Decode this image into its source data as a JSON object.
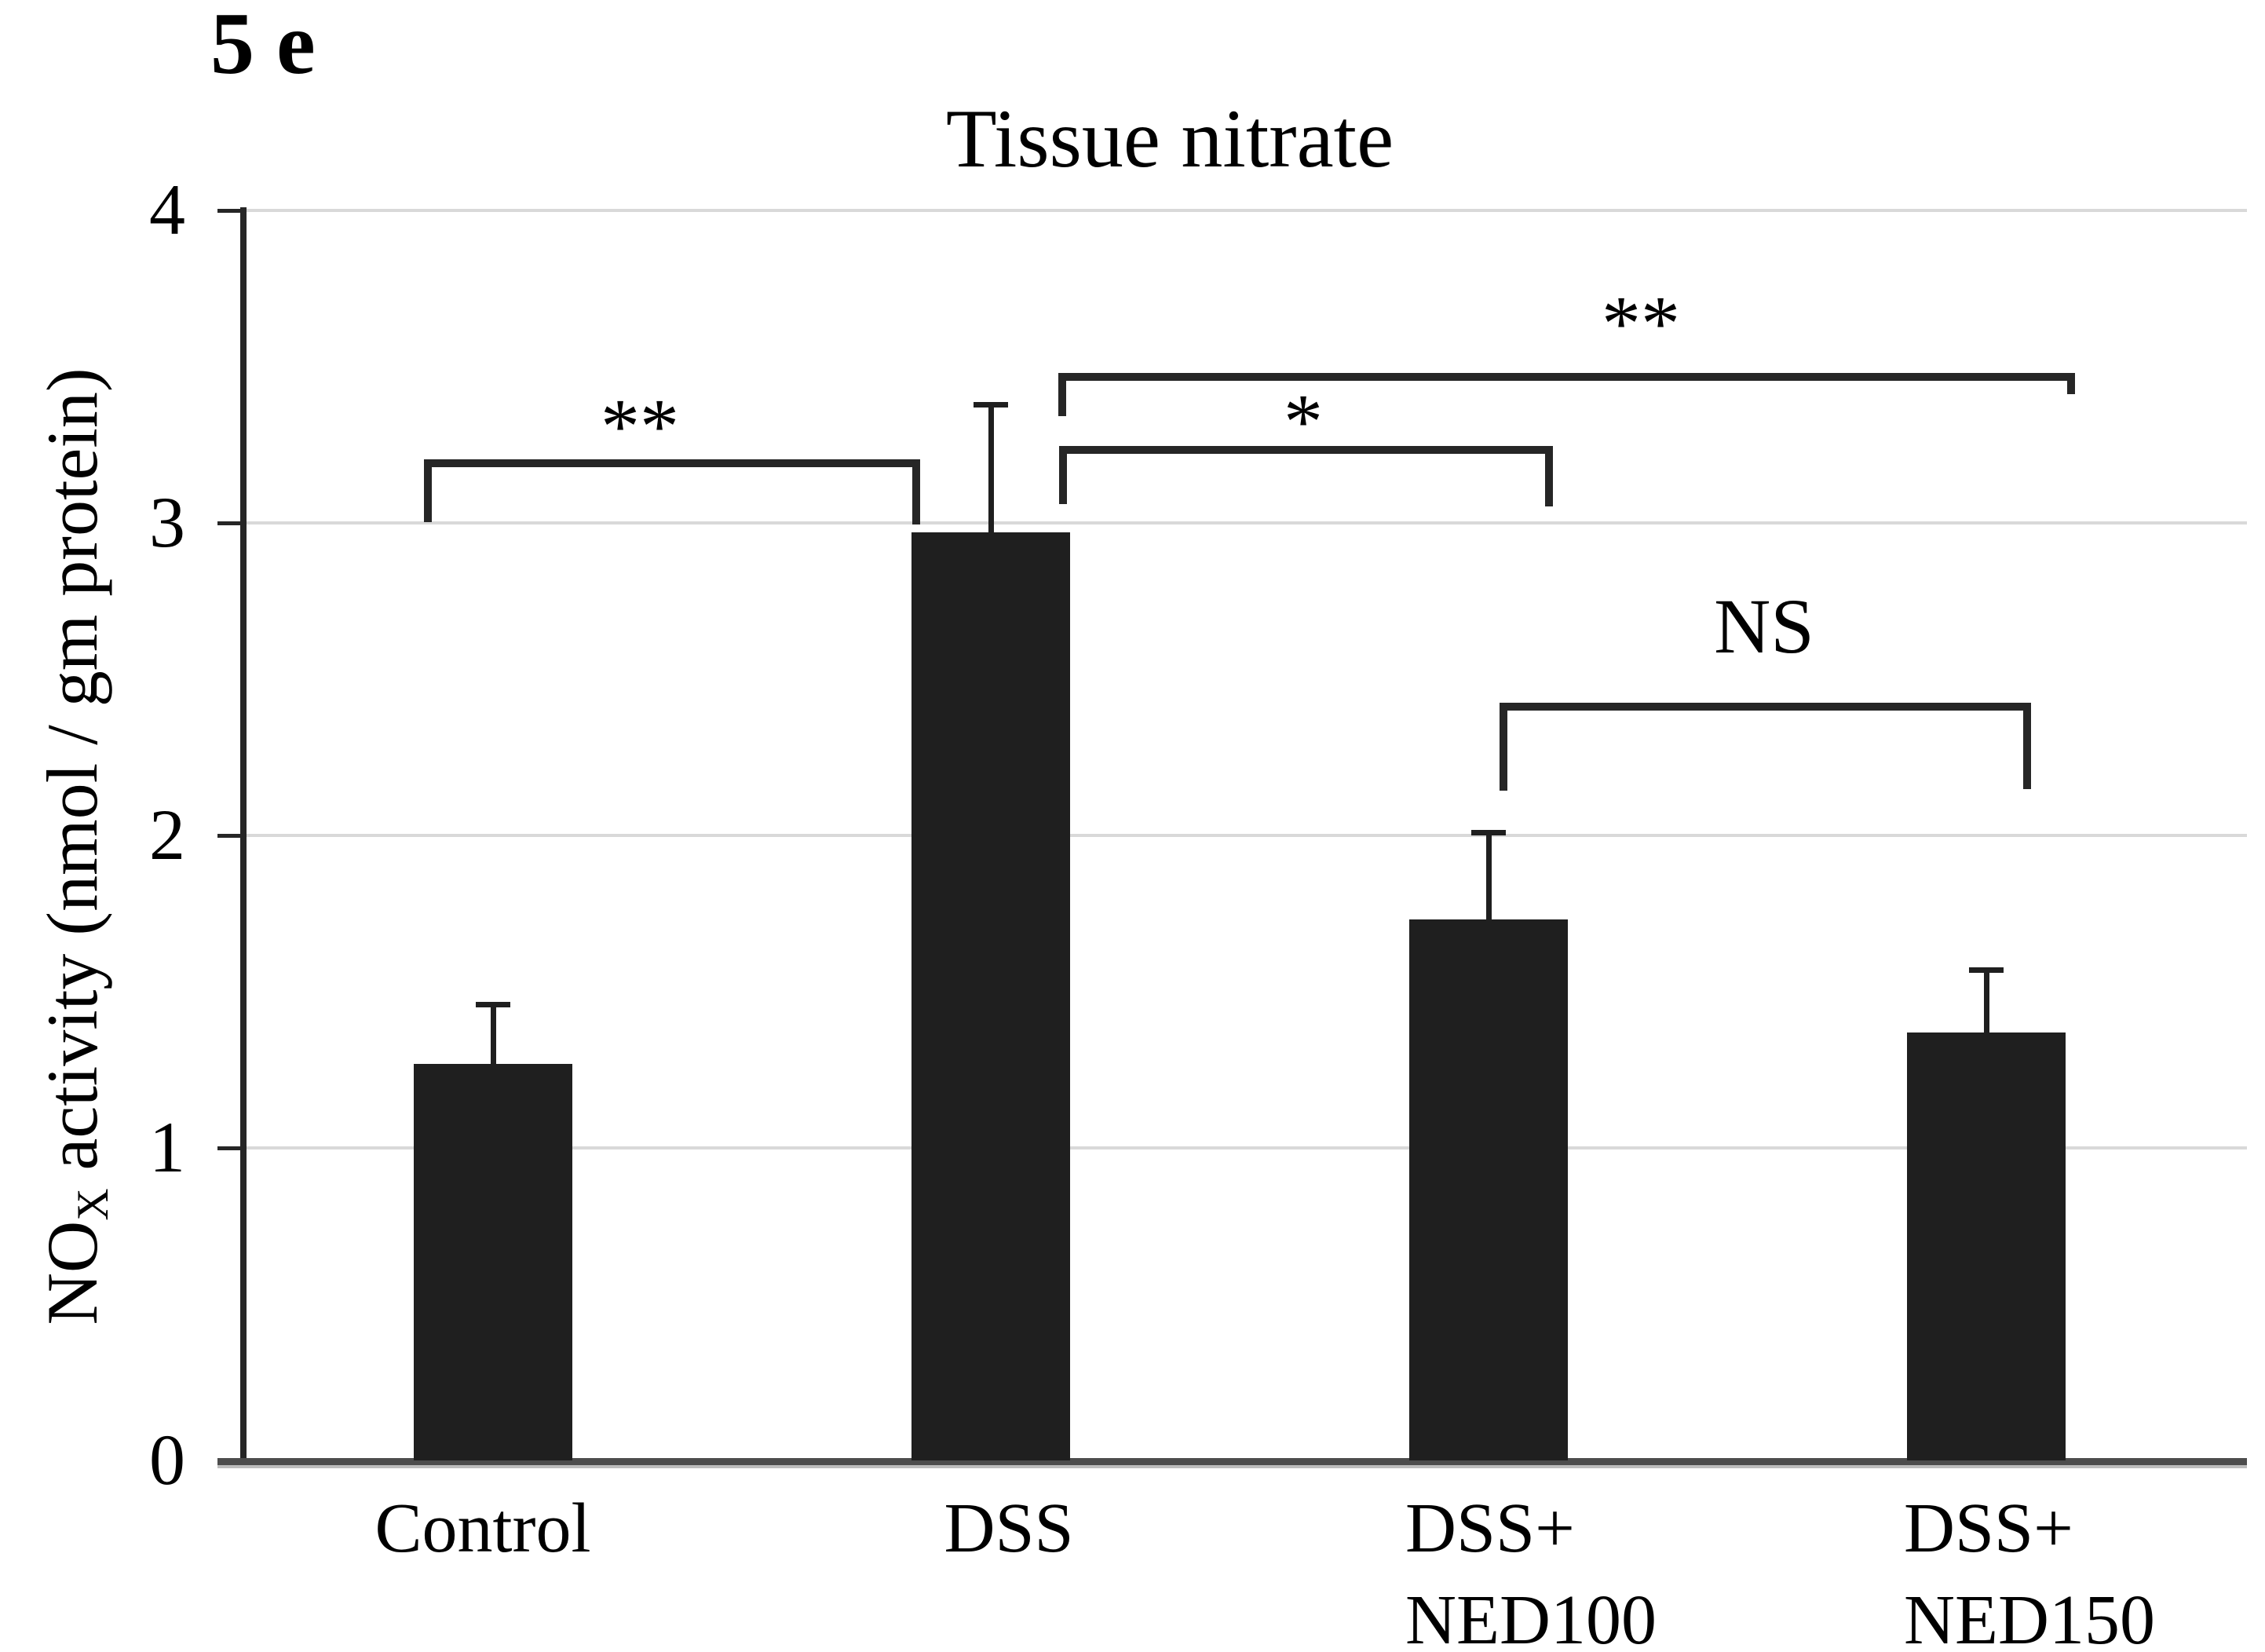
{
  "figure": {
    "label": "5 e"
  },
  "chart_data": {
    "type": "bar",
    "title": "Tissue nitrate",
    "ylabel": {
      "prefix": "NO",
      "subscript": "X",
      "rest": " activity (nmol / gm protein)"
    },
    "ylabel_plain": "NOX activity (nmol / gm protein)",
    "xlabel": "",
    "categories": [
      {
        "id": "Control",
        "lines": [
          "Control"
        ]
      },
      {
        "id": "DSS",
        "lines": [
          "DSS"
        ]
      },
      {
        "id": "DSS+NED100",
        "lines": [
          "DSS+",
          "NED100"
        ]
      },
      {
        "id": "DSS+NED150",
        "lines": [
          "DSS+",
          "NED150"
        ]
      }
    ],
    "values": [
      1.27,
      2.97,
      1.73,
      1.37
    ],
    "error_plus": [
      0.19,
      0.41,
      0.28,
      0.2
    ],
    "ylim": [
      0,
      4
    ],
    "yticks": [
      0,
      1,
      2,
      3,
      4
    ],
    "grid": "horizontal-gridlines-on",
    "legend": "none",
    "significance": [
      {
        "from": "Control",
        "to": "DSS",
        "label": "**"
      },
      {
        "from": "DSS",
        "to": "DSS+NED100",
        "label": "*"
      },
      {
        "from": "DSS",
        "to": "DSS+NED150",
        "label": "**"
      },
      {
        "from": "DSS+NED100",
        "to": "DSS+NED150",
        "label": "NS"
      }
    ],
    "colors": {
      "bar": "#1f1f1f",
      "gridline": "#d9d9d9",
      "y_axis": "#262626",
      "x_axis": "#4d4d4d",
      "text": "#000000"
    }
  }
}
